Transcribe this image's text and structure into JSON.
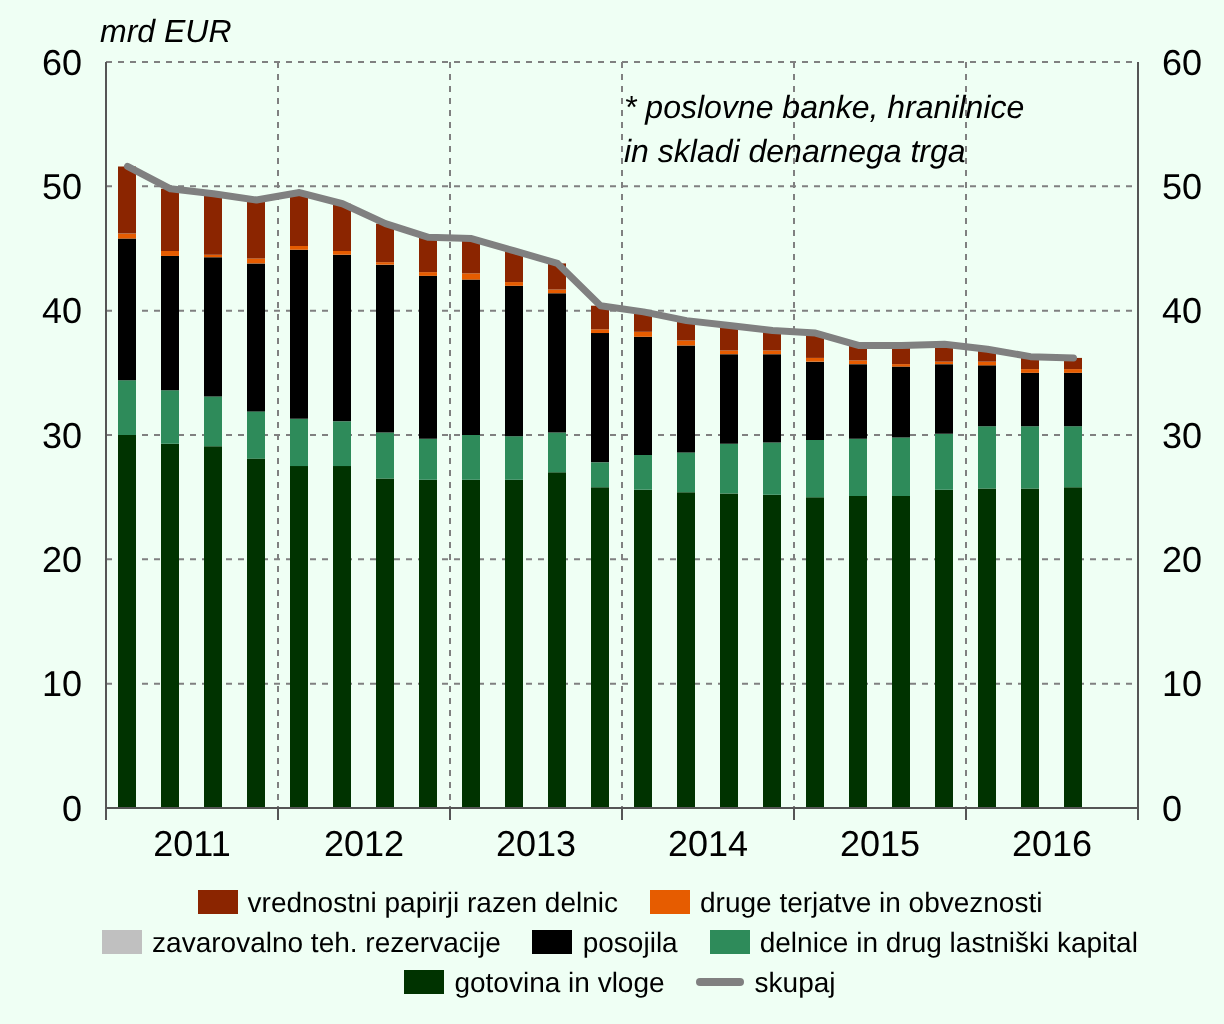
{
  "chart_data": {
    "type": "bar",
    "stacked": true,
    "ylabel": "mrd EUR",
    "annotations": [
      "* poslovne banke, hranilnice\nin skladi denarnega trga"
    ],
    "x": [
      2011.125,
      2011.375,
      2011.625,
      2011.875,
      2012.125,
      2012.375,
      2012.625,
      2012.875,
      2013.125,
      2013.375,
      2013.625,
      2013.875,
      2014.125,
      2014.375,
      2014.625,
      2014.875,
      2015.125,
      2015.375,
      2015.625,
      2015.875,
      2016.125,
      2016.375,
      2016.625
    ],
    "xlim": [
      2011,
      2017
    ],
    "xticks": [
      {
        "value": 2011,
        "label": null
      },
      {
        "value": 2011.5,
        "label": "2011"
      },
      {
        "value": 2012,
        "label": null
      },
      {
        "value": 2012.5,
        "label": "2012"
      },
      {
        "value": 2013,
        "label": null
      },
      {
        "value": 2013.5,
        "label": "2013"
      },
      {
        "value": 2014,
        "label": null
      },
      {
        "value": 2014.5,
        "label": "2014"
      },
      {
        "value": 2015,
        "label": null
      },
      {
        "value": 2015.5,
        "label": "2015"
      },
      {
        "value": 2016,
        "label": null
      },
      {
        "value": 2016.5,
        "label": "2016"
      },
      {
        "value": 2017,
        "label": null
      }
    ],
    "ylim": [
      0,
      60
    ],
    "yticks": [
      0,
      10,
      20,
      30,
      40,
      50,
      60
    ],
    "y2lim": [
      0,
      60
    ],
    "y2ticks": [
      0,
      10,
      20,
      30,
      40,
      50,
      60
    ],
    "grid": true,
    "legend": "bottom",
    "series": [
      {
        "name": "gotovina in vloge",
        "color": "#003300",
        "values": [
          30.0,
          29.3,
          29.1,
          28.1,
          27.5,
          27.5,
          26.5,
          26.4,
          26.4,
          26.4,
          27.0,
          25.8,
          25.6,
          25.4,
          25.3,
          25.2,
          25.0,
          25.1,
          25.1,
          25.6,
          25.7,
          25.7,
          25.8
        ]
      },
      {
        "name": "delnice in drug lastniški kapital",
        "color": "#2e8b5a",
        "values": [
          4.4,
          4.3,
          4.0,
          3.8,
          3.8,
          3.6,
          3.7,
          3.3,
          3.6,
          3.5,
          3.2,
          2.0,
          2.8,
          3.2,
          4.0,
          4.2,
          4.6,
          4.6,
          4.7,
          4.5,
          5.0,
          5.0,
          4.9
        ]
      },
      {
        "name": "posojila",
        "color": "#000000",
        "values": [
          11.4,
          10.8,
          11.2,
          11.9,
          13.6,
          13.4,
          13.5,
          13.1,
          12.5,
          12.1,
          11.2,
          10.4,
          9.5,
          8.6,
          7.2,
          7.1,
          6.3,
          6.0,
          5.7,
          5.6,
          4.9,
          4.3,
          4.3
        ]
      },
      {
        "name": "zavarovalno teh. rezervacije",
        "color": "#c0c0c0",
        "values": [
          null,
          null,
          null,
          null,
          null,
          null,
          null,
          null,
          null,
          null,
          null,
          null,
          null,
          null,
          null,
          null,
          null,
          null,
          null,
          null,
          null,
          null,
          null
        ]
      },
      {
        "name": "druge terjatve in obveznosti",
        "color": "#e65c00",
        "values": [
          0.4,
          0.4,
          0.2,
          0.4,
          0.3,
          0.3,
          0.2,
          0.3,
          0.5,
          0.3,
          0.3,
          0.3,
          0.4,
          0.4,
          0.3,
          0.3,
          0.3,
          0.3,
          0.2,
          0.2,
          0.3,
          0.3,
          0.3
        ]
      },
      {
        "name": "vrednostni papirji razen delnic",
        "color": "#8b2500",
        "values": [
          5.4,
          5.0,
          4.9,
          4.7,
          4.3,
          3.8,
          3.1,
          2.8,
          2.8,
          2.5,
          2.1,
          1.9,
          1.6,
          1.6,
          2.0,
          1.6,
          2.0,
          1.2,
          1.5,
          1.4,
          1.0,
          1.0,
          0.9
        ]
      },
      {
        "name": "skupaj",
        "type": "line",
        "color": "#808080",
        "values": [
          51.6,
          49.8,
          49.4,
          48.9,
          49.5,
          48.6,
          47.0,
          45.9,
          45.8,
          44.8,
          43.8,
          40.4,
          39.9,
          39.2,
          38.8,
          38.4,
          38.2,
          37.2,
          37.2,
          37.3,
          36.9,
          36.3,
          36.2
        ]
      }
    ]
  }
}
